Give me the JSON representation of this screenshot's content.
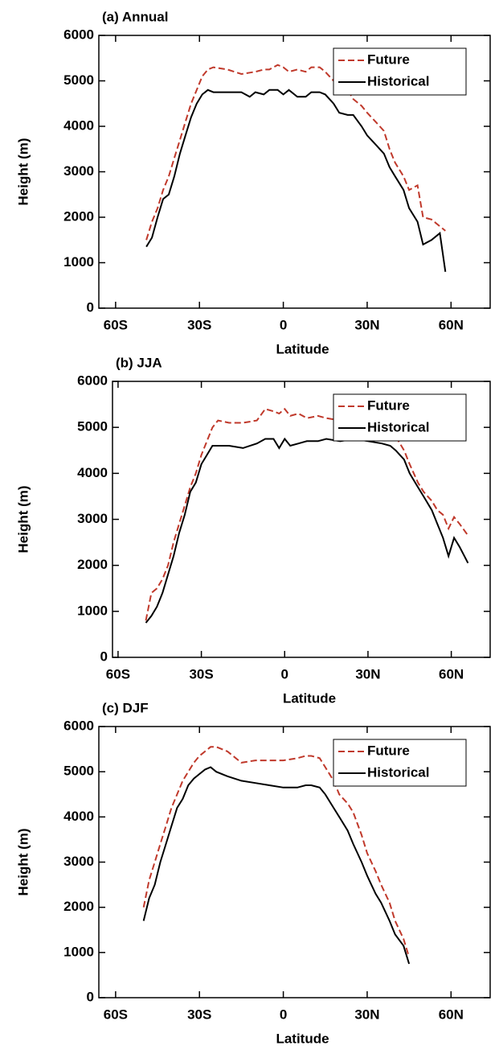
{
  "chart_data": [
    {
      "type": "line",
      "title": "(a) Annual",
      "x_label": "Latitude",
      "y_label": "Height (m)",
      "x": [
        -49,
        -47,
        -45,
        -43,
        -41,
        -39,
        -37,
        -35,
        -33,
        -31,
        -29,
        -27,
        -25,
        -20,
        -15,
        -12,
        -10,
        -7,
        -5,
        -2,
        0,
        2,
        5,
        8,
        10,
        13,
        15,
        18,
        20,
        23,
        25,
        28,
        30,
        33,
        36,
        38,
        40,
        43,
        45,
        48,
        50,
        53,
        56,
        58
      ],
      "series": [
        {
          "name": "Future",
          "color": "#c0392b",
          "linestyle": "dashed",
          "values": [
            1500,
            1900,
            2200,
            2600,
            2900,
            3300,
            3700,
            4100,
            4500,
            4800,
            5100,
            5250,
            5300,
            5250,
            5150,
            5180,
            5200,
            5250,
            5250,
            5350,
            5300,
            5200,
            5250,
            5200,
            5300,
            5300,
            5200,
            5000,
            4900,
            4800,
            4600,
            4450,
            4300,
            4100,
            3900,
            3500,
            3200,
            2900,
            2600,
            2700,
            2000,
            1950,
            1800,
            1700
          ]
        },
        {
          "name": "Historical",
          "color": "#000000",
          "linestyle": "solid",
          "values": [
            1350,
            1550,
            2000,
            2400,
            2500,
            2900,
            3400,
            3800,
            4200,
            4500,
            4700,
            4800,
            4750,
            4750,
            4750,
            4650,
            4750,
            4700,
            4800,
            4800,
            4700,
            4800,
            4650,
            4650,
            4750,
            4750,
            4700,
            4500,
            4300,
            4250,
            4250,
            4000,
            3800,
            3600,
            3400,
            3100,
            2900,
            2600,
            2200,
            1900,
            1400,
            1500,
            1650,
            800
          ]
        }
      ],
      "xlim": [
        -66,
        74
      ],
      "xticks": [
        {
          "value": -60,
          "label": "60S"
        },
        {
          "value": -30,
          "label": "30S"
        },
        0,
        {
          "value": 30,
          "label": "30N"
        },
        {
          "value": 60,
          "label": "60N"
        }
      ],
      "ylim": [
        0,
        6000
      ],
      "yticks": [
        0,
        1000,
        2000,
        3000,
        4000,
        5000,
        6000
      ],
      "legend": "upper right"
    },
    {
      "type": "line",
      "title": "(b) JJA",
      "x_label": "Latitude",
      "y_label": "Height (m)",
      "x": [
        -50,
        -48,
        -46,
        -44,
        -42,
        -40,
        -38,
        -36,
        -34,
        -32,
        -30,
        -28,
        -26,
        -24,
        -20,
        -15,
        -10,
        -7,
        -4,
        -2,
        0,
        2,
        5,
        8,
        12,
        15,
        20,
        25,
        30,
        35,
        38,
        40,
        43,
        45,
        48,
        50,
        53,
        55,
        57,
        59,
        61,
        63,
        66
      ],
      "series": [
        {
          "name": "Future",
          "color": "#c0392b",
          "linestyle": "dashed",
          "values": [
            800,
            1400,
            1500,
            1700,
            2000,
            2500,
            2900,
            3300,
            3700,
            4000,
            4400,
            4700,
            5000,
            5150,
            5100,
            5100,
            5150,
            5400,
            5350,
            5300,
            5400,
            5250,
            5300,
            5200,
            5250,
            5200,
            5150,
            5150,
            5200,
            5150,
            5000,
            4800,
            4500,
            4200,
            3800,
            3600,
            3400,
            3200,
            3100,
            2800,
            3050,
            2900,
            2650
          ]
        },
        {
          "name": "Historical",
          "color": "#000000",
          "linestyle": "solid",
          "values": [
            750,
            900,
            1100,
            1400,
            1800,
            2200,
            2700,
            3100,
            3600,
            3800,
            4200,
            4400,
            4600,
            4600,
            4600,
            4550,
            4650,
            4750,
            4750,
            4550,
            4750,
            4600,
            4650,
            4700,
            4700,
            4750,
            4700,
            4750,
            4700,
            4650,
            4600,
            4500,
            4300,
            4000,
            3700,
            3500,
            3200,
            2900,
            2600,
            2200,
            2600,
            2400,
            2050
          ]
        }
      ],
      "xlim": [
        -62,
        74
      ],
      "xticks": [
        {
          "value": -60,
          "label": "60S"
        },
        {
          "value": -30,
          "label": "30S"
        },
        0,
        {
          "value": 30,
          "label": "30N"
        },
        {
          "value": 60,
          "label": "60N"
        }
      ],
      "ylim": [
        0,
        6000
      ],
      "yticks": [
        0,
        1000,
        2000,
        3000,
        4000,
        5000,
        6000
      ],
      "legend": "upper right"
    },
    {
      "type": "line",
      "title": "(c) DJF",
      "x_label": "Latitude",
      "y_label": "Height (m)",
      "x": [
        -50,
        -48,
        -46,
        -44,
        -42,
        -40,
        -38,
        -36,
        -34,
        -32,
        -30,
        -28,
        -26,
        -24,
        -20,
        -15,
        -10,
        -5,
        0,
        5,
        8,
        10,
        13,
        15,
        18,
        20,
        23,
        25,
        28,
        30,
        33,
        35,
        38,
        40,
        43,
        45
      ],
      "series": [
        {
          "name": "Future",
          "color": "#c0392b",
          "linestyle": "dashed",
          "values": [
            2000,
            2600,
            3000,
            3400,
            3800,
            4200,
            4500,
            4800,
            5000,
            5200,
            5350,
            5450,
            5550,
            5550,
            5450,
            5200,
            5250,
            5250,
            5250,
            5300,
            5350,
            5350,
            5300,
            5100,
            4800,
            4500,
            4300,
            4100,
            3600,
            3200,
            2800,
            2500,
            2100,
            1700,
            1300,
            900
          ]
        },
        {
          "name": "Historical",
          "color": "#000000",
          "linestyle": "solid",
          "values": [
            1700,
            2200,
            2500,
            3000,
            3400,
            3800,
            4200,
            4400,
            4700,
            4850,
            4950,
            5050,
            5100,
            5000,
            4900,
            4800,
            4750,
            4700,
            4650,
            4650,
            4700,
            4700,
            4650,
            4500,
            4200,
            4000,
            3700,
            3400,
            3000,
            2700,
            2300,
            2100,
            1700,
            1400,
            1150,
            750
          ]
        }
      ],
      "xlim": [
        -66,
        74
      ],
      "xticks": [
        {
          "value": -60,
          "label": "60S"
        },
        {
          "value": -30,
          "label": "30S"
        },
        0,
        {
          "value": 30,
          "label": "30N"
        },
        {
          "value": 60,
          "label": "60N"
        }
      ],
      "ylim": [
        0,
        6000
      ],
      "yticks": [
        0,
        1000,
        2000,
        3000,
        4000,
        5000,
        6000
      ],
      "legend": "upper right"
    }
  ]
}
